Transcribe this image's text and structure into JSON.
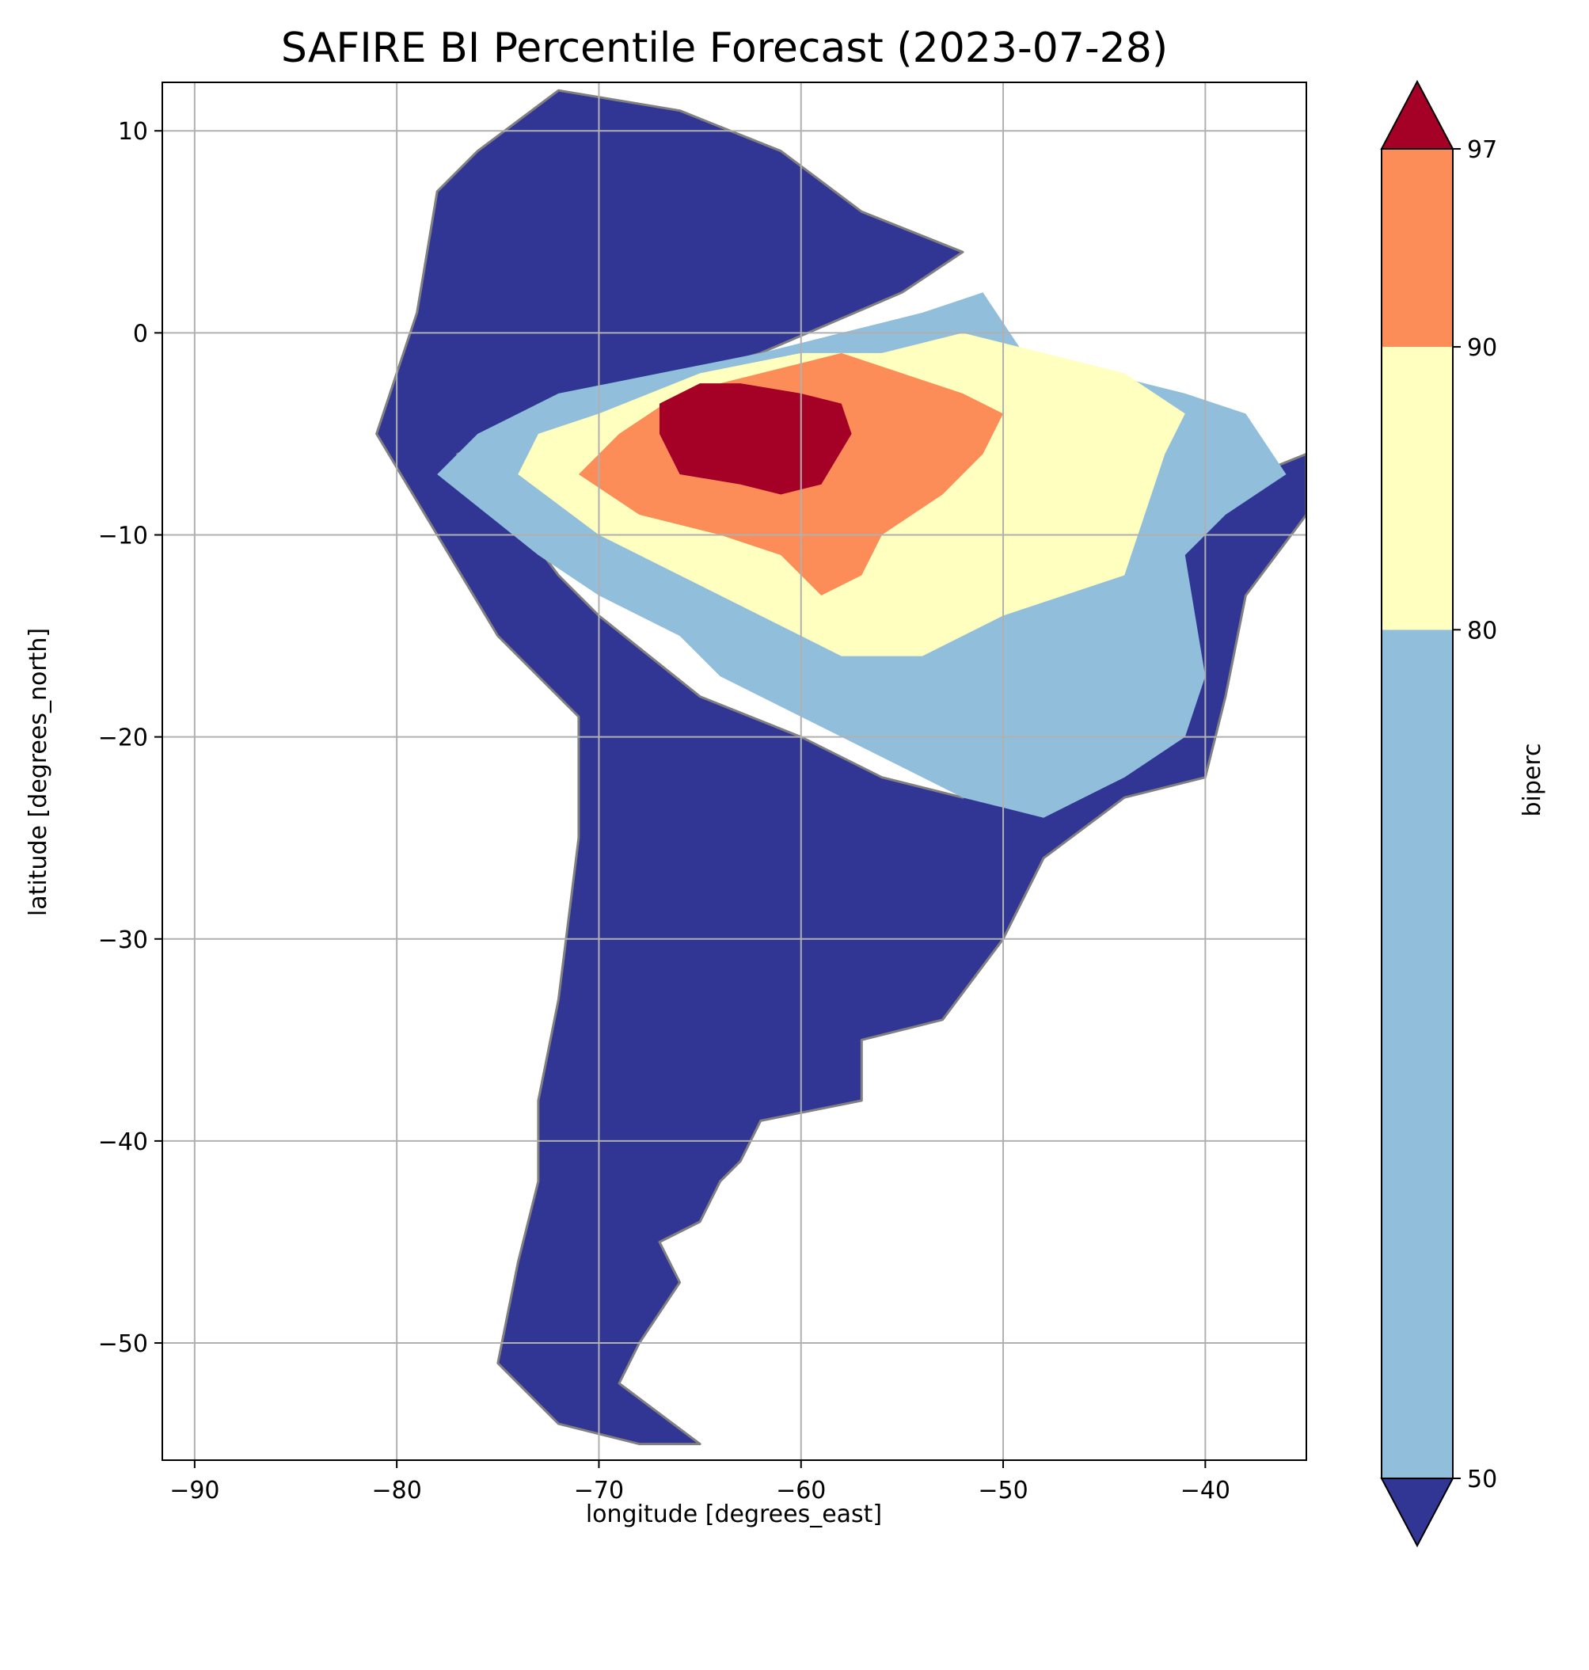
{
  "figure": {
    "title": "SAFIRE BI Percentile Forecast (2023-07-28)",
    "xlabel": "longitude [degrees_east]",
    "ylabel": "latitude [degrees_north]",
    "x_ticks": [
      -90,
      -80,
      -70,
      -60,
      -50,
      -40
    ],
    "x_tick_labels": [
      "−90",
      "−80",
      "−70",
      "−60",
      "−50",
      "−40"
    ],
    "y_ticks": [
      10,
      0,
      -10,
      -20,
      -30,
      -40,
      -50
    ],
    "y_tick_labels": [
      "10",
      "0",
      "−10",
      "−20",
      "−30",
      "−40",
      "−50"
    ],
    "xlim": [
      -91.6,
      -35.0
    ],
    "ylim": [
      -55.8,
      12.4
    ],
    "grid": true,
    "borders_color": "#808080"
  },
  "colorbar": {
    "label": "biperc",
    "tick_labels": [
      "50",
      "80",
      "90",
      "97"
    ],
    "levels": [
      50,
      80,
      90,
      97
    ],
    "colors": {
      "under": "#313695",
      "b50_80": "#91bfdb",
      "b80_90": "#ffffbf",
      "b90_97": "#fc8d59",
      "over": "#a50026"
    },
    "extend": "both"
  },
  "chart_data": {
    "type": "heatmap",
    "title": "SAFIRE BI Percentile Forecast (2023-07-28)",
    "xlabel": "longitude [degrees_east]",
    "ylabel": "latitude [degrees_north]",
    "xlim": [
      -91.6,
      -35.0
    ],
    "ylim": [
      -55.8,
      12.4
    ],
    "colorbar_label": "biperc",
    "colorbar_levels": [
      50,
      80,
      90,
      97
    ],
    "regions": [
      {
        "category": "<50",
        "color": "#313695",
        "polygon": [
          [
            -79,
            1
          ],
          [
            -80,
            -2
          ],
          [
            -81,
            -5
          ],
          [
            -78,
            -10
          ],
          [
            -75,
            -15
          ],
          [
            -71,
            -19
          ],
          [
            -71,
            -25
          ],
          [
            -72,
            -33
          ],
          [
            -73,
            -38
          ],
          [
            -73,
            -42
          ],
          [
            -74,
            -46
          ],
          [
            -75,
            -51
          ],
          [
            -72,
            -54
          ],
          [
            -68,
            -55
          ],
          [
            -65,
            -55
          ],
          [
            -69,
            -52
          ],
          [
            -68,
            -50
          ],
          [
            -66,
            -47
          ],
          [
            -67,
            -45
          ],
          [
            -65,
            -44
          ],
          [
            -64,
            -42
          ],
          [
            -63,
            -41
          ],
          [
            -62,
            -39
          ],
          [
            -57,
            -38
          ],
          [
            -57,
            -35
          ],
          [
            -53,
            -34
          ],
          [
            -50,
            -30
          ],
          [
            -48,
            -26
          ],
          [
            -44,
            -23
          ],
          [
            -40,
            -22
          ],
          [
            -39,
            -18
          ],
          [
            -38,
            -13
          ],
          [
            -35,
            -9
          ],
          [
            -35,
            -6
          ],
          [
            -40,
            -8
          ],
          [
            -42,
            -11
          ],
          [
            -44,
            -18
          ],
          [
            -48,
            -20
          ],
          [
            -52,
            -23
          ],
          [
            -56,
            -22
          ],
          [
            -60,
            -20
          ],
          [
            -65,
            -18
          ],
          [
            -70,
            -14
          ],
          [
            -72,
            -12
          ],
          [
            -75,
            -8
          ],
          [
            -77,
            -6
          ],
          [
            -72,
            -4
          ],
          [
            -62,
            -1
          ],
          [
            -55,
            2
          ],
          [
            -52,
            4
          ],
          [
            -57,
            6
          ],
          [
            -61,
            9
          ],
          [
            -66,
            11
          ],
          [
            -72,
            12
          ],
          [
            -76,
            9
          ],
          [
            -78,
            7
          ]
        ]
      },
      {
        "category": "50-80",
        "color": "#91bfdb",
        "polygon": [
          [
            -78,
            -7
          ],
          [
            -73,
            -11
          ],
          [
            -70,
            -13
          ],
          [
            -66,
            -15
          ],
          [
            -64,
            -17
          ],
          [
            -60,
            -19
          ],
          [
            -56,
            -21
          ],
          [
            -52,
            -23
          ],
          [
            -48,
            -24
          ],
          [
            -44,
            -22
          ],
          [
            -41,
            -20
          ],
          [
            -40,
            -17
          ],
          [
            -41,
            -11
          ],
          [
            -39,
            -9
          ],
          [
            -36,
            -7
          ],
          [
            -38,
            -4
          ],
          [
            -41,
            -3
          ],
          [
            -45,
            -2
          ],
          [
            -49,
            -1
          ],
          [
            -51,
            2
          ],
          [
            -54,
            1
          ],
          [
            -58,
            0
          ],
          [
            -62,
            -1
          ],
          [
            -67,
            -2
          ],
          [
            -72,
            -3
          ],
          [
            -76,
            -5
          ]
        ]
      },
      {
        "category": "80-90",
        "color": "#ffffbf",
        "polygon": [
          [
            -74,
            -7
          ],
          [
            -70,
            -10
          ],
          [
            -66,
            -12
          ],
          [
            -62,
            -14
          ],
          [
            -58,
            -16
          ],
          [
            -54,
            -16
          ],
          [
            -50,
            -14
          ],
          [
            -47,
            -13
          ],
          [
            -44,
            -12
          ],
          [
            -43,
            -9
          ],
          [
            -42,
            -6
          ],
          [
            -41,
            -4
          ],
          [
            -44,
            -2
          ],
          [
            -48,
            -1
          ],
          [
            -52,
            0
          ],
          [
            -56,
            -1
          ],
          [
            -60,
            -1
          ],
          [
            -65,
            -2
          ],
          [
            -70,
            -4
          ],
          [
            -73,
            -5
          ]
        ]
      },
      {
        "category": "90-97",
        "color": "#fc8d59",
        "polygon": [
          [
            -71,
            -7
          ],
          [
            -68,
            -9
          ],
          [
            -64,
            -10
          ],
          [
            -61,
            -11
          ],
          [
            -59,
            -13
          ],
          [
            -57,
            -12
          ],
          [
            -56,
            -10
          ],
          [
            -53,
            -8
          ],
          [
            -51,
            -6
          ],
          [
            -50,
            -4
          ],
          [
            -52,
            -3
          ],
          [
            -55,
            -2
          ],
          [
            -58,
            -1
          ],
          [
            -62,
            -2
          ],
          [
            -66,
            -3
          ],
          [
            -69,
            -5
          ]
        ]
      },
      {
        "category": ">97",
        "color": "#a50026",
        "polygon": [
          [
            -67,
            -5
          ],
          [
            -66,
            -7
          ],
          [
            -63,
            -7.5
          ],
          [
            -61,
            -8
          ],
          [
            -59,
            -7.5
          ],
          [
            -57.5,
            -5
          ],
          [
            -58,
            -3.5
          ],
          [
            -60,
            -3
          ],
          [
            -63,
            -2.5
          ],
          [
            -65,
            -2.5
          ],
          [
            -67,
            -3.5
          ]
        ]
      }
    ]
  }
}
